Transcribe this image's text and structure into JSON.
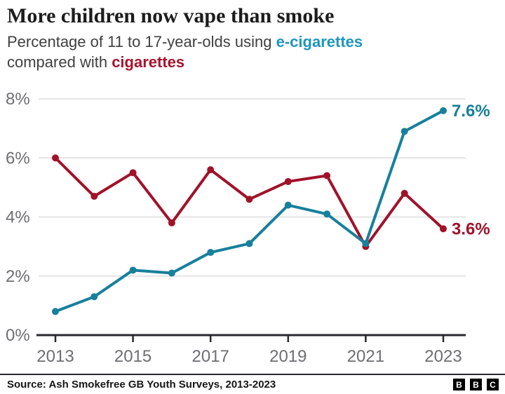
{
  "header": {
    "title": "More children now vape than smoke",
    "subtitle": {
      "line1_prefix": "Percentage of 11 to 17-year-olds using ",
      "keyword1": "e-cigarettes",
      "line2_prefix": "compared with ",
      "keyword2": "cigarettes"
    }
  },
  "chart_data": {
    "type": "line",
    "x": [
      2013,
      2014,
      2015,
      2016,
      2017,
      2018,
      2019,
      2020,
      2021,
      2022,
      2023
    ],
    "series": [
      {
        "name": "cigarettes",
        "color_key": "cig_line",
        "values": [
          6.0,
          4.7,
          5.5,
          3.8,
          5.6,
          4.6,
          5.2,
          5.4,
          3.0,
          4.8,
          3.6
        ],
        "end_label": "3.6%"
      },
      {
        "name": "e-cigarettes",
        "color_key": "ecig_line",
        "values": [
          0.8,
          1.3,
          2.2,
          2.1,
          2.8,
          3.1,
          4.4,
          4.1,
          3.1,
          6.9,
          7.6
        ],
        "end_label": "7.6%"
      }
    ],
    "ylim": [
      0,
      8
    ],
    "yticks": [
      {
        "v": 0,
        "label": "0%"
      },
      {
        "v": 2,
        "label": "2%"
      },
      {
        "v": 4,
        "label": "4%"
      },
      {
        "v": 6,
        "label": "6%"
      },
      {
        "v": 8,
        "label": "8%"
      }
    ],
    "xticks": [
      {
        "v": 2013,
        "label": "2013"
      },
      {
        "v": 2015,
        "label": "2015"
      },
      {
        "v": 2017,
        "label": "2017"
      },
      {
        "v": 2019,
        "label": "2019"
      },
      {
        "v": 2021,
        "label": "2021"
      },
      {
        "v": 2023,
        "label": "2023"
      }
    ],
    "grid": "horizontal",
    "legend_position": "none"
  },
  "colors": {
    "title": "#1c1c1c",
    "subtitle": "#404040",
    "ecig_line": "#17809c",
    "ecig_text": "#1f96bd",
    "cig_line": "#a0122a",
    "cig_text": "#a8132c",
    "grid": "#e4e4e4",
    "axis": "#29282d",
    "tick_label": "#6e6e73"
  },
  "footer": {
    "source": "Source: Ash Smokefree GB Youth Surveys, 2013-2023",
    "logo_letters": [
      "B",
      "B",
      "C"
    ]
  }
}
